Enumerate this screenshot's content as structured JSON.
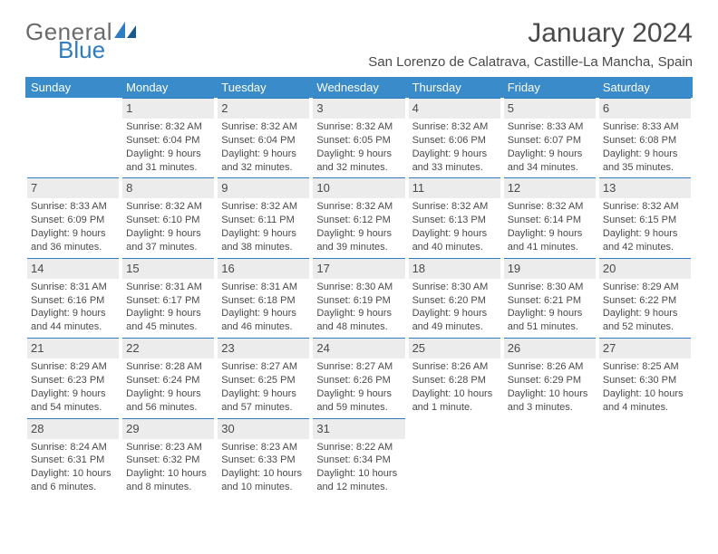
{
  "brand": {
    "part1": "General",
    "part2": "Blue"
  },
  "title": "January 2024",
  "location": "San Lorenzo de Calatrava, Castille-La Mancha, Spain",
  "colors": {
    "header_bg": "#3a8bc9",
    "accent": "#2f7dc0",
    "daynum_bg": "#ececec",
    "text": "#4a4a4a",
    "page_bg": "#ffffff"
  },
  "weekdays": [
    "Sunday",
    "Monday",
    "Tuesday",
    "Wednesday",
    "Thursday",
    "Friday",
    "Saturday"
  ],
  "weeks": [
    [
      null,
      {
        "n": "1",
        "sr": "Sunrise: 8:32 AM",
        "ss": "Sunset: 6:04 PM",
        "d1": "Daylight: 9 hours",
        "d2": "and 31 minutes."
      },
      {
        "n": "2",
        "sr": "Sunrise: 8:32 AM",
        "ss": "Sunset: 6:04 PM",
        "d1": "Daylight: 9 hours",
        "d2": "and 32 minutes."
      },
      {
        "n": "3",
        "sr": "Sunrise: 8:32 AM",
        "ss": "Sunset: 6:05 PM",
        "d1": "Daylight: 9 hours",
        "d2": "and 32 minutes."
      },
      {
        "n": "4",
        "sr": "Sunrise: 8:32 AM",
        "ss": "Sunset: 6:06 PM",
        "d1": "Daylight: 9 hours",
        "d2": "and 33 minutes."
      },
      {
        "n": "5",
        "sr": "Sunrise: 8:33 AM",
        "ss": "Sunset: 6:07 PM",
        "d1": "Daylight: 9 hours",
        "d2": "and 34 minutes."
      },
      {
        "n": "6",
        "sr": "Sunrise: 8:33 AM",
        "ss": "Sunset: 6:08 PM",
        "d1": "Daylight: 9 hours",
        "d2": "and 35 minutes."
      }
    ],
    [
      {
        "n": "7",
        "sr": "Sunrise: 8:33 AM",
        "ss": "Sunset: 6:09 PM",
        "d1": "Daylight: 9 hours",
        "d2": "and 36 minutes."
      },
      {
        "n": "8",
        "sr": "Sunrise: 8:32 AM",
        "ss": "Sunset: 6:10 PM",
        "d1": "Daylight: 9 hours",
        "d2": "and 37 minutes."
      },
      {
        "n": "9",
        "sr": "Sunrise: 8:32 AM",
        "ss": "Sunset: 6:11 PM",
        "d1": "Daylight: 9 hours",
        "d2": "and 38 minutes."
      },
      {
        "n": "10",
        "sr": "Sunrise: 8:32 AM",
        "ss": "Sunset: 6:12 PM",
        "d1": "Daylight: 9 hours",
        "d2": "and 39 minutes."
      },
      {
        "n": "11",
        "sr": "Sunrise: 8:32 AM",
        "ss": "Sunset: 6:13 PM",
        "d1": "Daylight: 9 hours",
        "d2": "and 40 minutes."
      },
      {
        "n": "12",
        "sr": "Sunrise: 8:32 AM",
        "ss": "Sunset: 6:14 PM",
        "d1": "Daylight: 9 hours",
        "d2": "and 41 minutes."
      },
      {
        "n": "13",
        "sr": "Sunrise: 8:32 AM",
        "ss": "Sunset: 6:15 PM",
        "d1": "Daylight: 9 hours",
        "d2": "and 42 minutes."
      }
    ],
    [
      {
        "n": "14",
        "sr": "Sunrise: 8:31 AM",
        "ss": "Sunset: 6:16 PM",
        "d1": "Daylight: 9 hours",
        "d2": "and 44 minutes."
      },
      {
        "n": "15",
        "sr": "Sunrise: 8:31 AM",
        "ss": "Sunset: 6:17 PM",
        "d1": "Daylight: 9 hours",
        "d2": "and 45 minutes."
      },
      {
        "n": "16",
        "sr": "Sunrise: 8:31 AM",
        "ss": "Sunset: 6:18 PM",
        "d1": "Daylight: 9 hours",
        "d2": "and 46 minutes."
      },
      {
        "n": "17",
        "sr": "Sunrise: 8:30 AM",
        "ss": "Sunset: 6:19 PM",
        "d1": "Daylight: 9 hours",
        "d2": "and 48 minutes."
      },
      {
        "n": "18",
        "sr": "Sunrise: 8:30 AM",
        "ss": "Sunset: 6:20 PM",
        "d1": "Daylight: 9 hours",
        "d2": "and 49 minutes."
      },
      {
        "n": "19",
        "sr": "Sunrise: 8:30 AM",
        "ss": "Sunset: 6:21 PM",
        "d1": "Daylight: 9 hours",
        "d2": "and 51 minutes."
      },
      {
        "n": "20",
        "sr": "Sunrise: 8:29 AM",
        "ss": "Sunset: 6:22 PM",
        "d1": "Daylight: 9 hours",
        "d2": "and 52 minutes."
      }
    ],
    [
      {
        "n": "21",
        "sr": "Sunrise: 8:29 AM",
        "ss": "Sunset: 6:23 PM",
        "d1": "Daylight: 9 hours",
        "d2": "and 54 minutes."
      },
      {
        "n": "22",
        "sr": "Sunrise: 8:28 AM",
        "ss": "Sunset: 6:24 PM",
        "d1": "Daylight: 9 hours",
        "d2": "and 56 minutes."
      },
      {
        "n": "23",
        "sr": "Sunrise: 8:27 AM",
        "ss": "Sunset: 6:25 PM",
        "d1": "Daylight: 9 hours",
        "d2": "and 57 minutes."
      },
      {
        "n": "24",
        "sr": "Sunrise: 8:27 AM",
        "ss": "Sunset: 6:26 PM",
        "d1": "Daylight: 9 hours",
        "d2": "and 59 minutes."
      },
      {
        "n": "25",
        "sr": "Sunrise: 8:26 AM",
        "ss": "Sunset: 6:28 PM",
        "d1": "Daylight: 10 hours",
        "d2": "and 1 minute."
      },
      {
        "n": "26",
        "sr": "Sunrise: 8:26 AM",
        "ss": "Sunset: 6:29 PM",
        "d1": "Daylight: 10 hours",
        "d2": "and 3 minutes."
      },
      {
        "n": "27",
        "sr": "Sunrise: 8:25 AM",
        "ss": "Sunset: 6:30 PM",
        "d1": "Daylight: 10 hours",
        "d2": "and 4 minutes."
      }
    ],
    [
      {
        "n": "28",
        "sr": "Sunrise: 8:24 AM",
        "ss": "Sunset: 6:31 PM",
        "d1": "Daylight: 10 hours",
        "d2": "and 6 minutes."
      },
      {
        "n": "29",
        "sr": "Sunrise: 8:23 AM",
        "ss": "Sunset: 6:32 PM",
        "d1": "Daylight: 10 hours",
        "d2": "and 8 minutes."
      },
      {
        "n": "30",
        "sr": "Sunrise: 8:23 AM",
        "ss": "Sunset: 6:33 PM",
        "d1": "Daylight: 10 hours",
        "d2": "and 10 minutes."
      },
      {
        "n": "31",
        "sr": "Sunrise: 8:22 AM",
        "ss": "Sunset: 6:34 PM",
        "d1": "Daylight: 10 hours",
        "d2": "and 12 minutes."
      },
      null,
      null,
      null
    ]
  ]
}
